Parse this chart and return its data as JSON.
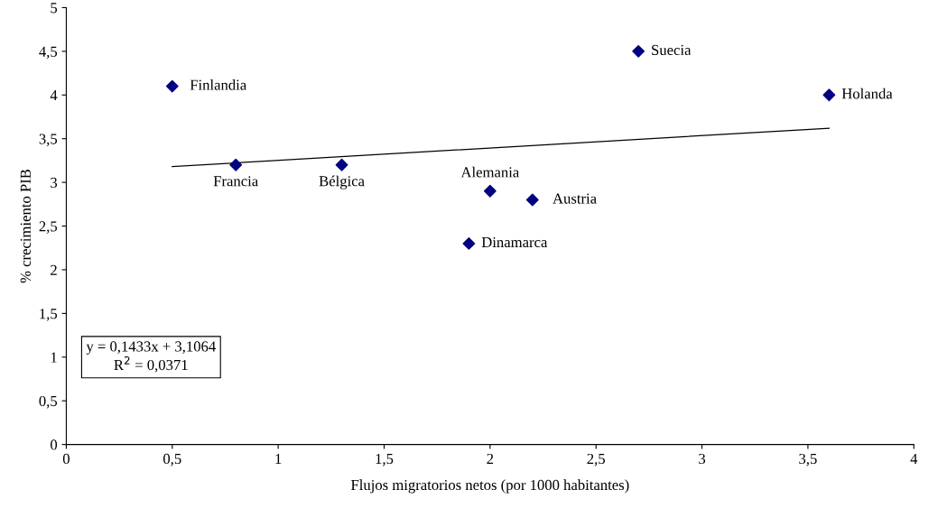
{
  "chart_data": {
    "type": "scatter",
    "xlabel": "Flujos migratorios netos (por 1000 habitantes)",
    "ylabel": "% crecimiento PIB",
    "xlim": [
      0,
      4
    ],
    "ylim": [
      0,
      5
    ],
    "xticks": [
      0,
      {
        "value": 0.5,
        "label": "0,5"
      },
      1,
      {
        "value": 1.5,
        "label": "1,5"
      },
      2,
      {
        "value": 2.5,
        "label": "2,5"
      },
      3,
      {
        "value": 3.5,
        "label": "3,5"
      },
      4
    ],
    "yticks": [
      0,
      {
        "value": 0.5,
        "label": "0,5"
      },
      1,
      {
        "value": 1.5,
        "label": "1,5"
      },
      2,
      {
        "value": 2.5,
        "label": "2,5"
      },
      3,
      {
        "value": 3.5,
        "label": "3,5"
      },
      4,
      {
        "value": 4.5,
        "label": "4,5"
      },
      5
    ],
    "grid": false,
    "legend": false,
    "series": [
      {
        "color": "#000080",
        "marker": "diamond",
        "x": [
          0.5,
          0.8,
          1.3,
          1.9,
          2.0,
          2.2,
          2.7,
          3.6
        ],
        "values": [
          4.1,
          3.2,
          3.2,
          2.3,
          2.9,
          2.8,
          4.5,
          4.0
        ]
      },
      {
        "type": "line",
        "color": "#000000",
        "x": [
          0.5,
          3.6
        ],
        "values": [
          3.18,
          3.62
        ]
      }
    ],
    "annotations": [
      {
        "text": "Finlandia",
        "x": 0.5,
        "y": 4.1
      },
      {
        "text": "Francia",
        "x": 0.8,
        "y": 3.2
      },
      {
        "text": "Bélgica",
        "x": 1.3,
        "y": 3.2
      },
      {
        "text": "Dinamarca",
        "x": 1.9,
        "y": 2.3
      },
      {
        "text": "Alemania",
        "x": 2.0,
        "y": 2.9
      },
      {
        "text": "Austria",
        "x": 2.2,
        "y": 2.8
      },
      {
        "text": "Suecia",
        "x": 2.7,
        "y": 4.5
      },
      {
        "text": "Holanda",
        "x": 3.6,
        "y": 4.0
      },
      "y = 0,1433x + 3,1064\nR$^{2}$ = 0,0371"
    ]
  }
}
